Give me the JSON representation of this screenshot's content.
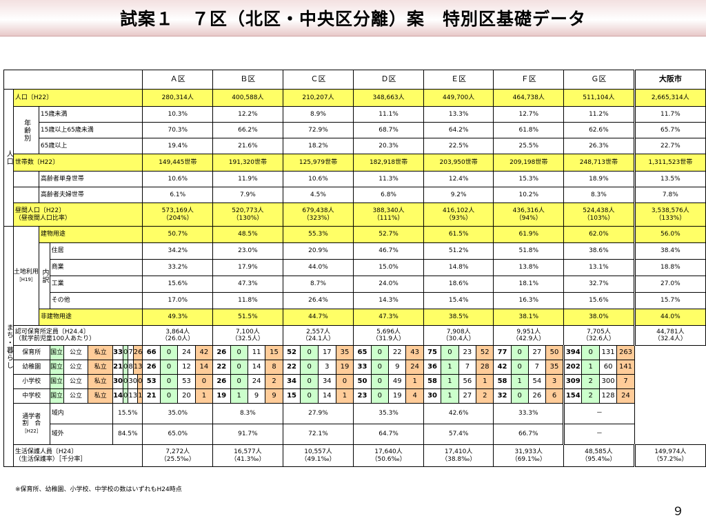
{
  "title": "試案１　７区（北区・中央区分離）案　特別区基礎データ",
  "columns": [
    "Ａ区",
    "Ｂ区",
    "Ｃ区",
    "Ｄ区",
    "Ｅ区",
    "Ｆ区",
    "Ｇ区",
    "大阪市"
  ],
  "labels": {
    "population_group": "人口",
    "population": "人口〔H22〕",
    "age_group": "年齢別",
    "age_under15": "15歳未満",
    "age_15_64": "15歳以上65歳未満",
    "age_65plus": "65歳以上",
    "households": "世帯数〔H22〕",
    "elderly_single": "高齢者単身世帯",
    "elderly_couple": "高齢者夫婦世帯",
    "daytime_line1": "昼間人口〔H22〕",
    "daytime_line2": "（昼夜間人口比率）",
    "town_group": "まち・暮らし",
    "landuse_group": "土地利用",
    "landuse_year": "［H19］",
    "breakdown": "内訳",
    "building_use": "建物用途",
    "residential": "住居",
    "commercial": "商業",
    "industrial": "工業",
    "other": "その他",
    "non_building": "非建物用途",
    "nursery_cap_line1": "認可保育所定員〔H24.4〕",
    "nursery_cap_line2": "（就学前児童100人あたり）",
    "nursery": "保育所",
    "kindergarten": "幼稚園",
    "elementary": "小学校",
    "junior_high": "中学校",
    "national": "国立",
    "public": "公立",
    "private": "私立",
    "commute_line1": "通学者",
    "commute_line2": "割　合",
    "commute_year": "［H22］",
    "inside": "域内",
    "outside": "域外",
    "welfare_line1": "生活保護人員〔H24〕",
    "welfare_line2": "（生活保護率）［千分率］"
  },
  "rows": {
    "population": [
      "280,314人",
      "400,588人",
      "210,207人",
      "348,663人",
      "449,700人",
      "464,738人",
      "511,104人",
      "2,665,314人"
    ],
    "age_under15": [
      "10.3%",
      "12.2%",
      "8.9%",
      "11.1%",
      "13.3%",
      "12.7%",
      "11.2%",
      "11.7%"
    ],
    "age_15_64": [
      "70.3%",
      "66.2%",
      "72.9%",
      "68.7%",
      "64.2%",
      "61.8%",
      "62.6%",
      "65.7%"
    ],
    "age_65plus": [
      "19.4%",
      "21.6%",
      "18.2%",
      "20.3%",
      "22.5%",
      "25.5%",
      "26.3%",
      "22.7%"
    ],
    "households": [
      "149,445世帯",
      "191,320世帯",
      "125,979世帯",
      "182,918世帯",
      "203,950世帯",
      "209,198世帯",
      "248,713世帯",
      "1,311,523世帯"
    ],
    "elderly_single": [
      "10.6%",
      "11.9%",
      "10.6%",
      "11.3%",
      "12.4%",
      "15.3%",
      "18.9%",
      "13.5%"
    ],
    "elderly_couple": [
      "6.1%",
      "7.9%",
      "4.5%",
      "6.8%",
      "9.2%",
      "10.2%",
      "8.3%",
      "7.8%"
    ],
    "daytime_pop": [
      "573,169人",
      "520,773人",
      "679,438人",
      "388,340人",
      "416,102人",
      "436,316人",
      "524,438人",
      "3,538,576人"
    ],
    "daytime_ratio": [
      "（204%）",
      "（130%）",
      "（323%）",
      "（111%）",
      "（93%）",
      "（94%）",
      "（103%）",
      "（133%）"
    ],
    "building_use": [
      "50.7%",
      "48.5%",
      "55.3%",
      "52.7%",
      "61.5%",
      "61.9%",
      "62.0%",
      "56.0%"
    ],
    "residential": [
      "34.2%",
      "23.0%",
      "20.9%",
      "46.7%",
      "51.2%",
      "51.8%",
      "38.6%",
      "38.4%"
    ],
    "commercial": [
      "33.2%",
      "17.9%",
      "44.0%",
      "15.0%",
      "14.8%",
      "13.8%",
      "13.1%",
      "18.8%"
    ],
    "industrial": [
      "15.6%",
      "47.3%",
      "8.7%",
      "24.0%",
      "18.6%",
      "18.1%",
      "32.7%",
      "27.0%"
    ],
    "other": [
      "17.0%",
      "11.8%",
      "26.4%",
      "14.3%",
      "15.4%",
      "16.3%",
      "15.6%",
      "15.7%"
    ],
    "non_building": [
      "49.3%",
      "51.5%",
      "44.7%",
      "47.3%",
      "38.5%",
      "38.1%",
      "38.0%",
      "44.0%"
    ],
    "nursery_cap": [
      "3,864人",
      "7,100人",
      "2,557人",
      "5,696人",
      "7,908人",
      "9,951人",
      "7,705人",
      "44,781人"
    ],
    "nursery_per100": [
      "（26.0人）",
      "（32.5人）",
      "（24.1人）",
      "（31.9人）",
      "（30.4人）",
      "（42.9人）",
      "（32.6人）",
      "（32.4人）"
    ],
    "commute_inside": [
      "15.5%",
      "35.0%",
      "8.3%",
      "27.9%",
      "35.3%",
      "42.6%",
      "33.3%",
      "－"
    ],
    "commute_outside": [
      "84.5%",
      "65.0%",
      "91.7%",
      "72.1%",
      "64.7%",
      "57.4%",
      "66.7%",
      "－"
    ],
    "welfare_people": [
      "7,272人",
      "16,577人",
      "10,557人",
      "17,640人",
      "17,410人",
      "31,933人",
      "48,585人",
      "149,974人"
    ],
    "welfare_rate": [
      "（25.5‰）",
      "（41.3‰）",
      "（49.1‰）",
      "（50.6‰）",
      "（38.8‰）",
      "（69.1‰）",
      "（95.4‰）",
      "（57.2‰）"
    ]
  },
  "schools": {
    "nursery": [
      [
        "33",
        "0",
        "7",
        "26"
      ],
      [
        "66",
        "0",
        "24",
        "42"
      ],
      [
        "26",
        "0",
        "11",
        "15"
      ],
      [
        "52",
        "0",
        "17",
        "35"
      ],
      [
        "65",
        "0",
        "22",
        "43"
      ],
      [
        "75",
        "0",
        "23",
        "52"
      ],
      [
        "77",
        "0",
        "27",
        "50"
      ],
      [
        "394",
        "0",
        "131",
        "263"
      ]
    ],
    "kindergarten": [
      [
        "21",
        "0",
        "8",
        "13"
      ],
      [
        "26",
        "0",
        "12",
        "14"
      ],
      [
        "22",
        "0",
        "14",
        "8"
      ],
      [
        "22",
        "0",
        "3",
        "19"
      ],
      [
        "33",
        "0",
        "9",
        "24"
      ],
      [
        "36",
        "1",
        "7",
        "28"
      ],
      [
        "42",
        "0",
        "7",
        "35"
      ],
      [
        "202",
        "1",
        "60",
        "141"
      ]
    ],
    "elementary": [
      [
        "30",
        "0",
        "30",
        "0"
      ],
      [
        "53",
        "0",
        "53",
        "0"
      ],
      [
        "26",
        "0",
        "24",
        "2"
      ],
      [
        "34",
        "0",
        "34",
        "0"
      ],
      [
        "50",
        "0",
        "49",
        "1"
      ],
      [
        "58",
        "1",
        "56",
        "1"
      ],
      [
        "58",
        "1",
        "54",
        "3"
      ],
      [
        "309",
        "2",
        "300",
        "7"
      ]
    ],
    "junior_high": [
      [
        "14",
        "0",
        "13",
        "1"
      ],
      [
        "21",
        "0",
        "20",
        "1"
      ],
      [
        "19",
        "1",
        "9",
        "9"
      ],
      [
        "15",
        "0",
        "14",
        "1"
      ],
      [
        "23",
        "0",
        "19",
        "4"
      ],
      [
        "30",
        "1",
        "27",
        "2"
      ],
      [
        "32",
        "0",
        "26",
        "6"
      ],
      [
        "154",
        "2",
        "128",
        "24"
      ]
    ]
  },
  "footnote": "※保育所、幼稚園、小学校、中学校の数はいずれもH24時点",
  "page_number": "９",
  "colors": {
    "highlight_yellow": "#ffff66",
    "national_green": "#ccffcc",
    "private_orange": "#ffcc99"
  }
}
